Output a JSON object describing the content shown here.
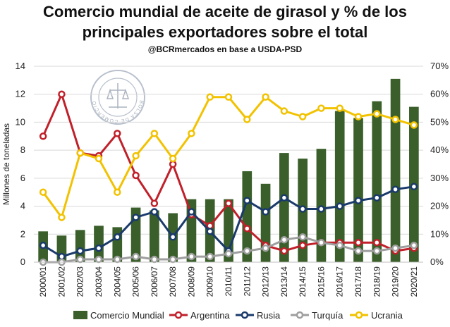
{
  "chart_data": {
    "type": "bar+line",
    "title": "Comercio mundial de aceite de girasol y % de los",
    "title_line2": "principales exportadores sobre el total",
    "subtitle": "@BCRmercados en base a USDA-PSD",
    "ylabel_left": "Millones de toneladas",
    "ylim_left": [
      0,
      14
    ],
    "yticks_left": [
      "0",
      "2",
      "4",
      "6",
      "8",
      "10",
      "12",
      "14"
    ],
    "ylim_right": [
      0,
      70
    ],
    "yticks_right": [
      "0%",
      "10%",
      "20%",
      "30%",
      "40%",
      "50%",
      "60%",
      "70%"
    ],
    "categories": [
      "2000/01",
      "2001/02",
      "2002/03",
      "2003/04",
      "2004/05",
      "2005/06",
      "2006/07",
      "2007/08",
      "2008/09",
      "2009/10",
      "2010/11",
      "2011/12",
      "2012/13",
      "2013/14",
      "2014/15",
      "2015/16",
      "2016/17",
      "2017/18",
      "2018/19",
      "2019/20",
      "2020/21"
    ],
    "bar_series": {
      "name": "Comercio Mundial",
      "color": "#3a5f2a",
      "axis": "left",
      "values": [
        2.2,
        1.9,
        2.3,
        2.6,
        2.5,
        3.9,
        3.7,
        3.5,
        4.5,
        4.5,
        4.5,
        6.5,
        5.6,
        7.8,
        7.4,
        8.1,
        10.8,
        10.3,
        11.5,
        13.1,
        11.1
      ]
    },
    "line_series": [
      {
        "name": "Argentina",
        "color": "#c0202a",
        "axis": "right",
        "values": [
          45,
          60,
          39,
          38,
          46,
          31,
          21,
          35,
          17,
          13,
          21,
          12,
          6,
          4,
          6,
          7,
          7,
          7,
          7,
          4,
          5
        ]
      },
      {
        "name": "Rusia",
        "color": "#1a3a6b",
        "axis": "right",
        "values": [
          6,
          2,
          4,
          5,
          9,
          16,
          18,
          9,
          18,
          11,
          4,
          22,
          18,
          23,
          19,
          19,
          20,
          22,
          23,
          26,
          27
        ]
      },
      {
        "name": "Turquía",
        "color": "#9e9e9e",
        "axis": "right",
        "values": [
          0,
          0,
          1,
          1,
          1,
          2,
          1,
          1,
          2,
          2,
          3,
          4,
          5,
          8,
          9,
          7,
          6,
          4,
          4,
          5,
          6
        ]
      },
      {
        "name": "Ucrania",
        "color": "#f2c200",
        "axis": "right",
        "values": [
          25,
          16,
          39,
          37,
          25,
          38,
          46,
          37,
          46,
          59,
          59,
          51,
          59,
          54,
          52,
          55,
          55,
          52,
          53,
          51,
          49
        ]
      }
    ],
    "legend_position": "bottom",
    "watermark_text": "BOLSA DE COMERCIO DE ROSARIO"
  }
}
